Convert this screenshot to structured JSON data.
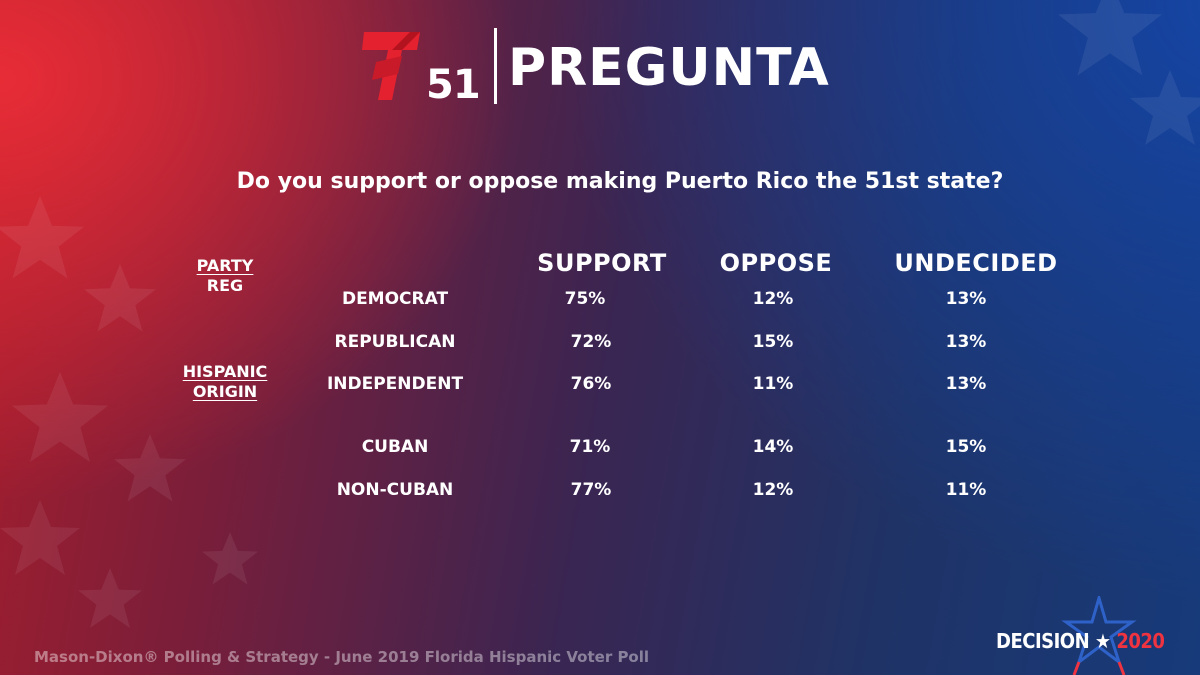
{
  "header": {
    "logo_text": "51",
    "title": "PREGUNTA"
  },
  "question": "Do you support or oppose making Puerto Rico the 51st state?",
  "groups": {
    "party": [
      "PARTY",
      "REG"
    ],
    "hispanic": [
      "HISPANIC",
      "ORIGIN"
    ]
  },
  "columns": [
    "SUPPORT",
    "OPPOSE",
    "UNDECIDED"
  ],
  "rows": [
    {
      "label": "DEMOCRAT",
      "support": "75%",
      "oppose": "12%",
      "undecided": "13%"
    },
    {
      "label": "REPUBLICAN",
      "support": "72%",
      "oppose": "15%",
      "undecided": "13%"
    },
    {
      "label": "INDEPENDENT",
      "support": "76%",
      "oppose": "11%",
      "undecided": "13%"
    },
    {
      "label": "CUBAN",
      "support": "71%",
      "oppose": "14%",
      "undecided": "15%"
    },
    {
      "label": "NON-CUBAN",
      "support": "77%",
      "oppose": "12%",
      "undecided": "11%"
    }
  ],
  "footer": {
    "source": "Mason-Dixon® Polling & Strategy - June 2019 Florida Hispanic Voter Poll",
    "decision_word": "DECISION",
    "decision_year": "2020"
  },
  "colors": {
    "brand_red": "#e4212f",
    "accent_blue": "#1f3f9a",
    "year_red": "#ef3340"
  }
}
